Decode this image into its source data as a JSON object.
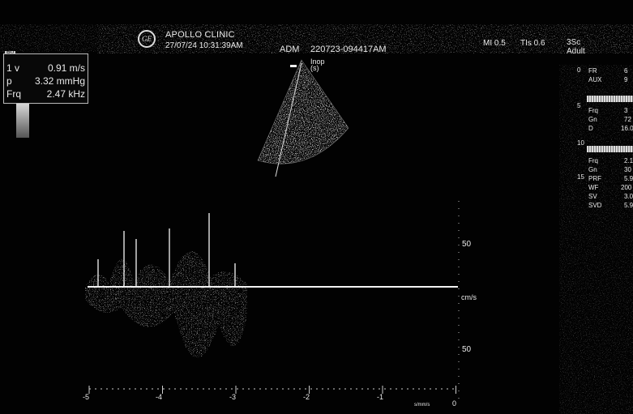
{
  "header": {
    "logo": "GE",
    "clinic_name": "APOLLO CLINIC",
    "datetime": "27/07/24 10:31:39AM",
    "operator": "ADM",
    "study_id": "220723-094417AM",
    "mi": "MI 0.5",
    "tis": "TIs 0.6",
    "probe": "3Sc",
    "preset": "Adult"
  },
  "measurement": {
    "tag": "PV",
    "rows": [
      {
        "label": "1 v",
        "value": "0.91 m/s"
      },
      {
        "label": "p",
        "value": "3.32 mmHg"
      },
      {
        "label": "Frq",
        "value": "2.47 kHz"
      }
    ]
  },
  "right_panel": {
    "group1": [
      {
        "label": "FR",
        "value": "6"
      },
      {
        "label": "AUX",
        "value": "9"
      }
    ],
    "group2": [
      {
        "label": "Frq",
        "value": "3"
      },
      {
        "label": "Gn",
        "value": "72"
      },
      {
        "label": "D",
        "value": "16.0"
      }
    ],
    "group3": [
      {
        "label": "Frq",
        "value": "2.1"
      },
      {
        "label": "Gn",
        "value": "30"
      },
      {
        "label": "PRF",
        "value": "5.9"
      },
      {
        "label": "WF",
        "value": "200"
      },
      {
        "label": "SV",
        "value": "3.0"
      },
      {
        "label": "SVD",
        "value": "5.9"
      }
    ],
    "depth_marks": [
      "0",
      "5",
      "10",
      "15"
    ]
  },
  "sector": {
    "cursor_label": "Inop\n(s)"
  },
  "doppler": {
    "scale_labels": [
      "50",
      "50"
    ],
    "unit": "cm/s",
    "time_labels": [
      "-5",
      "-4",
      "-3",
      "-2",
      "-1",
      "0"
    ],
    "sweep_label": "s/mm/s"
  }
}
